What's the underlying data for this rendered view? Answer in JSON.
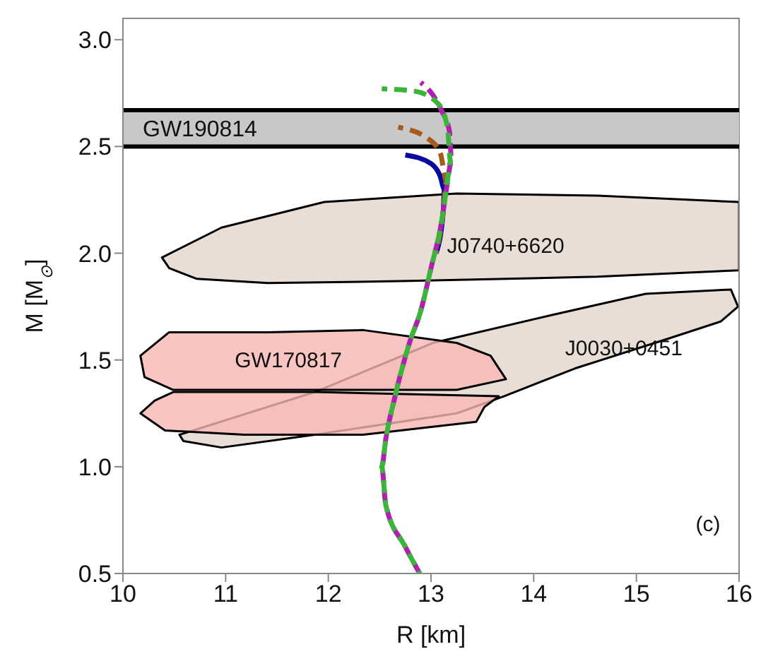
{
  "chart_data": {
    "type": "line",
    "xlabel": "R [km]",
    "ylabel": "M [M$_{⊙}$]",
    "xlim": [
      10,
      16
    ],
    "ylim": [
      0.5,
      3.1
    ],
    "xticks": [
      10,
      11,
      12,
      13,
      14,
      15,
      16
    ],
    "yticks": [
      0.5,
      {
        "value": 1,
        "label": "1.0"
      },
      1.5,
      {
        "value": 2,
        "label": "2.0"
      },
      2.5,
      {
        "value": 3,
        "label": "3.0"
      }
    ],
    "legend": false,
    "marker": "none",
    "bands": [
      {
        "axis": "y",
        "from": 2.5,
        "to": 2.67,
        "label": "GW190814",
        "color": "#c8c8c8"
      }
    ],
    "annotations": [
      "(c)"
    ],
    "series": [
      {
        "type": "area",
        "name": "J0740+6620",
        "color": "#e8ded5",
        "x": [
          10.38,
          10.96,
          11.96,
          13.25,
          14.62,
          16.0,
          16.0,
          14.62,
          12.79,
          11.41,
          10.72,
          10.45
        ],
        "values": [
          1.98,
          2.12,
          2.24,
          2.28,
          2.27,
          2.24,
          1.92,
          1.89,
          1.87,
          1.86,
          1.88,
          1.93
        ]
      },
      {
        "type": "area",
        "name": "J0030+0451",
        "color": "#e8ded5",
        "x": [
          10.55,
          11.87,
          13.02,
          14.17,
          15.09,
          15.92,
          15.99,
          15.82,
          15.31,
          14.4,
          13.71,
          13.25,
          11.87,
          10.96,
          10.59
        ],
        "values": [
          1.15,
          1.35,
          1.58,
          1.71,
          1.81,
          1.83,
          1.75,
          1.68,
          1.6,
          1.46,
          1.33,
          1.25,
          1.15,
          1.09,
          1.12
        ]
      },
      {
        "type": "area",
        "name": "GW170817",
        "color": "#f7b6b4",
        "x": [
          10.17,
          10.45,
          11.41,
          12.34,
          13.25,
          13.58,
          13.73,
          13.25,
          11.87,
          10.49,
          10.21
        ],
        "values": [
          1.52,
          1.63,
          1.63,
          1.64,
          1.58,
          1.52,
          1.41,
          1.36,
          1.36,
          1.36,
          1.42
        ]
      },
      {
        "type": "area",
        "color": "#f7b6b4",
        "x": [
          10.49,
          11.87,
          13.66,
          13.52,
          13.44,
          12.34,
          11.18,
          10.41,
          10.17,
          10.31
        ],
        "values": [
          1.35,
          1.35,
          1.33,
          1.28,
          1.21,
          1.15,
          1.15,
          1.17,
          1.25,
          1.31
        ]
      },
      {
        "color": "#0a0aa0",
        "line_style": "solid",
        "x": [
          13.05,
          13.12,
          13.13,
          13.09,
          13.0,
          12.75
        ],
        "values": [
          2.0,
          2.2,
          2.3,
          2.36,
          2.42,
          2.46
        ]
      },
      {
        "color": "#a55a1e",
        "line_style": "dashed",
        "x": [
          13.05,
          13.12,
          13.15,
          13.09,
          12.96,
          12.68
        ],
        "values": [
          2.0,
          2.2,
          2.34,
          2.47,
          2.54,
          2.59
        ]
      },
      {
        "color": "#b020b0",
        "line_style": "dashed",
        "x": [
          12.89,
          12.75,
          12.56,
          12.52,
          12.56,
          12.65,
          12.79,
          12.9,
          13.0,
          13.1,
          13.15,
          13.2,
          13.18,
          13.1,
          13.02,
          12.9
        ],
        "values": [
          0.5,
          0.625,
          0.82,
          1.0,
          1.13,
          1.33,
          1.58,
          1.73,
          1.93,
          2.14,
          2.3,
          2.43,
          2.57,
          2.67,
          2.74,
          2.8
        ]
      },
      {
        "color": "#3cb43c",
        "line_style": "dashed",
        "x": [
          12.89,
          12.75,
          12.56,
          12.52,
          12.56,
          12.65,
          12.79,
          12.9,
          13.0,
          13.1,
          13.15,
          13.19,
          13.16,
          13.07,
          12.83,
          12.52
        ],
        "values": [
          0.5,
          0.625,
          0.82,
          1.0,
          1.13,
          1.33,
          1.58,
          1.73,
          1.93,
          2.14,
          2.3,
          2.43,
          2.59,
          2.7,
          2.76,
          2.77
        ]
      }
    ]
  }
}
